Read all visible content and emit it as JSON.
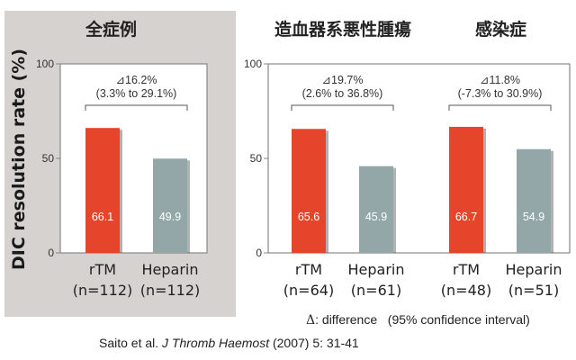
{
  "chart_data": [
    {
      "type": "bar",
      "title": "全症例",
      "ylabel": "DIC resolution rate (%)",
      "ylim": [
        0,
        100
      ],
      "yticks": [
        "0",
        "50",
        "100"
      ],
      "categories": [
        "rTM",
        "Heparin"
      ],
      "category_n": [
        "(n=112)",
        "(n=112)"
      ],
      "values": [
        66.1,
        49.9
      ],
      "value_labels": [
        "66.1",
        "49.9"
      ],
      "difference": "⊿16.2%",
      "ci": "(3.3% to 29.1%)",
      "highlighted": true
    },
    {
      "type": "bar",
      "title": "造血器系悪性腫瘍",
      "ylim": [
        0,
        100
      ],
      "yticks": [
        "0",
        "50",
        "100"
      ],
      "categories": [
        "rTM",
        "Heparin"
      ],
      "category_n": [
        "(n=64)",
        "(n=61)"
      ],
      "values": [
        65.6,
        45.9
      ],
      "value_labels": [
        "65.6",
        "45.9"
      ],
      "difference": "⊿19.7%",
      "ci": "(2.6% to 36.8%)"
    },
    {
      "type": "bar",
      "title": "感染症",
      "ylim": [
        0,
        100
      ],
      "yticks": [
        "0",
        "50",
        "100"
      ],
      "categories": [
        "rTM",
        "Heparin"
      ],
      "category_n": [
        "(n=48)",
        "(n=51)"
      ],
      "values": [
        66.7,
        54.9
      ],
      "value_labels": [
        "66.7",
        "54.9"
      ],
      "difference": "⊿11.8%",
      "ci": "(-7.3% to 30.9%)"
    }
  ],
  "colors": {
    "rTM": "#e5452a",
    "Heparin": "#93a7a8",
    "highlight_panel": "#d6d2cf",
    "axis": "#888888"
  },
  "footnote": {
    "delta_symbol": "Δ",
    "legend": ": difference   (95% confidence interval)",
    "citation_authors": "Saito et al. ",
    "citation_journal": "J Thromb Haemost",
    "citation_rest": " (2007) 5: 31-41"
  }
}
